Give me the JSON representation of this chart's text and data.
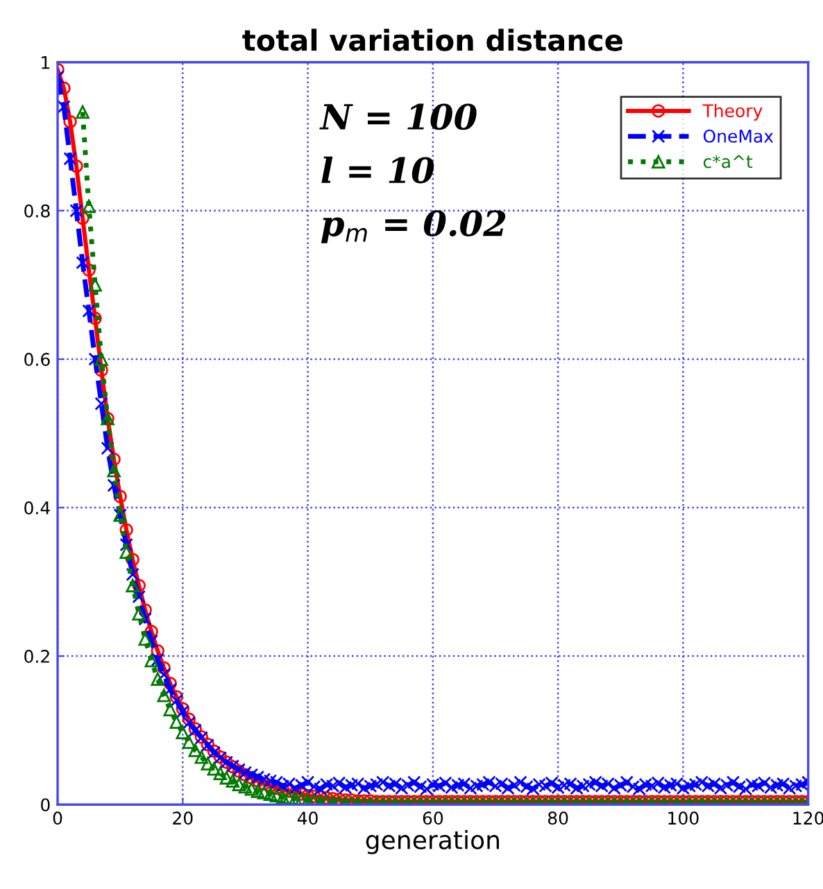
{
  "chart_data": {
    "type": "line",
    "title": "total variation distance",
    "xlabel": "generation",
    "xlim": [
      0,
      120
    ],
    "ylim": [
      0,
      1
    ],
    "xticks": [
      0,
      20,
      40,
      60,
      80,
      100,
      120
    ],
    "yticks": [
      0,
      0.2,
      0.4,
      0.6,
      0.8,
      1
    ],
    "grid": true,
    "legend": "top right",
    "annotations": [
      "N = 100",
      "l = 10",
      "p$_{m}$ = 0.02"
    ],
    "x": [
      0,
      1,
      2,
      3,
      4,
      5,
      6,
      7,
      8,
      9,
      10,
      11,
      12,
      13,
      14,
      15,
      16,
      17,
      18,
      19,
      20,
      21,
      22,
      23,
      24,
      25,
      26,
      27,
      28,
      29,
      30,
      31,
      32,
      33,
      34,
      35,
      36,
      37,
      38,
      39,
      40,
      41,
      42,
      43,
      44,
      45,
      46,
      47,
      48,
      49,
      50,
      51,
      52,
      53,
      54,
      55,
      56,
      57,
      58,
      59,
      60,
      61,
      62,
      63,
      64,
      65,
      66,
      67,
      68,
      69,
      70,
      71,
      72,
      73,
      74,
      75,
      76,
      77,
      78,
      79,
      80,
      81,
      82,
      83,
      84,
      85,
      86,
      87,
      88,
      89,
      90,
      91,
      92,
      93,
      94,
      95,
      96,
      97,
      98,
      99,
      100,
      101,
      102,
      103,
      104,
      105,
      106,
      107,
      108,
      109,
      110,
      111,
      112,
      113,
      114,
      115,
      116,
      117,
      118,
      119,
      120
    ],
    "series": [
      {
        "name": "Theory",
        "color": "#ff0000",
        "marker": "circle",
        "line_style": "solid",
        "values": [
          0.99,
          0.965,
          0.92,
          0.86,
          0.79,
          0.72,
          0.655,
          0.585,
          0.52,
          0.465,
          0.415,
          0.37,
          0.33,
          0.295,
          0.262,
          0.233,
          0.207,
          0.184,
          0.163,
          0.145,
          0.129,
          0.115,
          0.102,
          0.091,
          0.081,
          0.072,
          0.064,
          0.057,
          0.051,
          0.045,
          0.04,
          0.036,
          0.032,
          0.028,
          0.025,
          0.022,
          0.02,
          0.018,
          0.016,
          0.014,
          0.012,
          0.011,
          0.01,
          0.009,
          0.008,
          0.007,
          0.006,
          0.006,
          0.005,
          0.005,
          0.005,
          0.004,
          0.004,
          0.004,
          0.004,
          0.004,
          0.004,
          0.004,
          0.004,
          0.004,
          0.004,
          0.004,
          0.004,
          0.004,
          0.004,
          0.004,
          0.004,
          0.004,
          0.004,
          0.004,
          0.004,
          0.004,
          0.004,
          0.004,
          0.004,
          0.004,
          0.004,
          0.004,
          0.004,
          0.004,
          0.004,
          0.004,
          0.004,
          0.004,
          0.004,
          0.004,
          0.004,
          0.004,
          0.004,
          0.004,
          0.004,
          0.004,
          0.004,
          0.004,
          0.004,
          0.004,
          0.004,
          0.004,
          0.004,
          0.004,
          0.004,
          0.004,
          0.004,
          0.004,
          0.004,
          0.004,
          0.004,
          0.004,
          0.004,
          0.004,
          0.004,
          0.004,
          0.004,
          0.004,
          0.004,
          0.004,
          0.004,
          0.004,
          0.004,
          0.004,
          0.004
        ]
      },
      {
        "name": "OneMax",
        "color": "#0000ff",
        "marker": "cross",
        "line_style": "dashed",
        "values": [
          0.98,
          0.94,
          0.87,
          0.8,
          0.73,
          0.665,
          0.6,
          0.54,
          0.48,
          0.43,
          0.39,
          0.35,
          0.31,
          0.28,
          0.25,
          0.22,
          0.195,
          0.175,
          0.155,
          0.14,
          0.125,
          0.11,
          0.1,
          0.09,
          0.08,
          0.07,
          0.063,
          0.057,
          0.052,
          0.047,
          0.043,
          0.04,
          0.037,
          0.034,
          0.032,
          0.03,
          0.025,
          0.028,
          0.022,
          0.026,
          0.03,
          0.024,
          0.021,
          0.027,
          0.025,
          0.029,
          0.023,
          0.026,
          0.028,
          0.022,
          0.025,
          0.027,
          0.03,
          0.025,
          0.028,
          0.022,
          0.026,
          0.03,
          0.024,
          0.021,
          0.027,
          0.025,
          0.029,
          0.023,
          0.026,
          0.028,
          0.022,
          0.025,
          0.027,
          0.03,
          0.025,
          0.028,
          0.022,
          0.026,
          0.03,
          0.024,
          0.021,
          0.027,
          0.025,
          0.029,
          0.023,
          0.026,
          0.028,
          0.022,
          0.025,
          0.027,
          0.03,
          0.025,
          0.028,
          0.022,
          0.026,
          0.03,
          0.024,
          0.021,
          0.027,
          0.025,
          0.029,
          0.023,
          0.026,
          0.028,
          0.022,
          0.025,
          0.027,
          0.03,
          0.025,
          0.028,
          0.022,
          0.026,
          0.03,
          0.024,
          0.021,
          0.027,
          0.025,
          0.029,
          0.023,
          0.026,
          0.028,
          0.022,
          0.025,
          0.027,
          0.03
        ]
      },
      {
        "name": "c*a^t",
        "color": "#007a00",
        "marker": "triangle",
        "line_style": "dotted",
        "x": [
          4,
          5,
          6,
          7,
          8,
          9,
          10,
          11,
          12,
          13,
          14,
          15,
          16,
          17,
          18,
          19,
          20,
          21,
          22,
          23,
          24,
          25,
          26,
          27,
          28,
          29,
          30,
          31,
          32,
          33,
          34,
          35,
          36,
          37,
          38,
          39,
          40,
          41,
          42,
          43,
          44,
          45,
          46,
          47,
          48,
          49,
          50,
          51,
          52,
          53,
          54,
          55,
          56,
          57,
          58,
          59,
          60,
          61,
          62,
          63,
          64,
          65,
          66,
          67,
          68,
          69,
          70,
          71,
          72,
          73,
          74,
          75,
          76,
          77,
          78,
          79,
          80,
          81,
          82,
          83,
          84,
          85,
          86,
          87,
          88,
          89,
          90,
          91,
          92,
          93,
          94,
          95,
          96,
          97,
          98,
          99,
          100,
          101,
          102,
          103,
          104,
          105,
          106,
          107,
          108,
          109,
          110,
          111,
          112,
          113,
          114,
          115,
          116,
          117,
          118,
          119,
          120
        ],
        "values": [
          0.933,
          0.806,
          0.7,
          0.6,
          0.52,
          0.45,
          0.39,
          0.34,
          0.295,
          0.257,
          0.223,
          0.194,
          0.169,
          0.147,
          0.128,
          0.111,
          0.097,
          0.084,
          0.073,
          0.064,
          0.055,
          0.048,
          0.042,
          0.036,
          0.032,
          0.027,
          0.024,
          0.021,
          0.018,
          0.016,
          0.014,
          0.012,
          0.01,
          0.009,
          0.008,
          0.007,
          0.006,
          0.005,
          0.004,
          0.004,
          0.003,
          0.003,
          0.002,
          0.002,
          0.002,
          0.001,
          0.001,
          0.001,
          0.001,
          0.001,
          0.001,
          0.001,
          0.001,
          0.001,
          0.001,
          0.001,
          0.001,
          0.001,
          0.001,
          0.001,
          0.001,
          0.001,
          0.001,
          0.001,
          0.001,
          0.001,
          0.001,
          0.001,
          0.001,
          0.001,
          0.001,
          0.001,
          0.001,
          0.001,
          0.001,
          0.001,
          0.001,
          0.001,
          0.001,
          0.001,
          0.001,
          0.001,
          0.001,
          0.001,
          0.001,
          0.001,
          0.001,
          0.001,
          0.001,
          0.001,
          0.001,
          0.001,
          0.001,
          0.001,
          0.001,
          0.001,
          0.001,
          0.001,
          0.001,
          0.001,
          0.001,
          0.001,
          0.001,
          0.001,
          0.001,
          0.001,
          0.001,
          0.001,
          0.001,
          0.001,
          0.001,
          0.001,
          0.001,
          0.001,
          0.001,
          0.001,
          0.001
        ]
      }
    ]
  }
}
